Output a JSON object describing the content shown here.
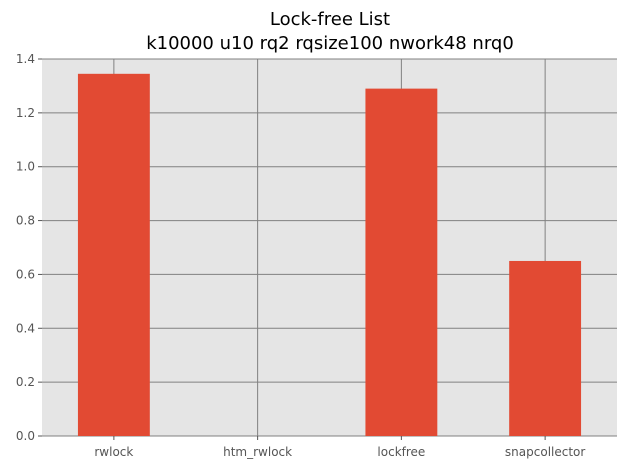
{
  "chart_data": {
    "type": "bar",
    "title": "Lock-free List",
    "subtitle": "k10000 u10 rq2 rqsize100 nwork48 nrq0",
    "xlabel": "",
    "ylabel": "",
    "categories": [
      "rwlock",
      "htm_rwlock",
      "lockfree",
      "snapcollector"
    ],
    "values": [
      1.345,
      0,
      1.29,
      0.65
    ],
    "ylim": [
      0,
      1.4
    ],
    "yticks": [
      "0.0",
      "0.2",
      "0.4",
      "0.6",
      "0.8",
      "1.0",
      "1.2",
      "1.4"
    ],
    "ytick_values": [
      0,
      0.2,
      0.4,
      0.6,
      0.8,
      1.0,
      1.2,
      1.4
    ],
    "grid": true,
    "bar_color": "#E24A33",
    "background_color": "#E5E5E5",
    "grid_color": "#808080"
  }
}
